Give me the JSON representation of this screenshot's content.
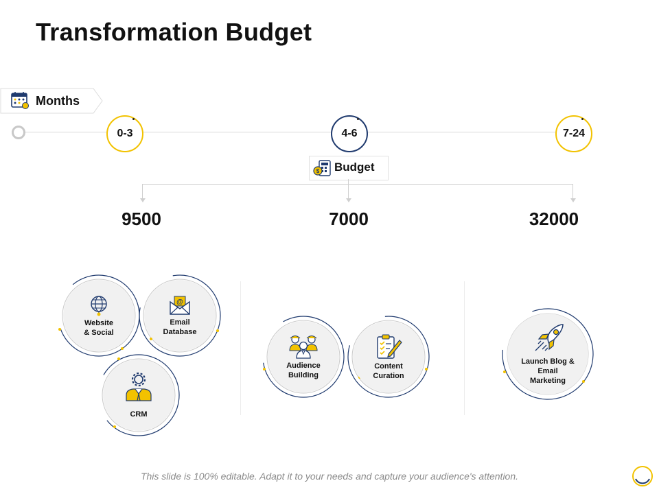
{
  "slide": {
    "title": "Transformation Budget",
    "footer": "This slide is 100% editable. Adapt it to your needs and capture your audience's attention."
  },
  "timeline": {
    "label": "Months",
    "periods": [
      "0-3",
      "4-6",
      "7-24"
    ]
  },
  "budget": {
    "label": "Budget",
    "amounts": [
      "9500",
      "7000",
      "32000"
    ]
  },
  "activities": {
    "website_social": "Website\n& Social",
    "email_database": "Email\nDatabase",
    "crm": "CRM",
    "audience_building": "Audience\nBuilding",
    "content_curation": "Content\nCuration",
    "launch_blog": "Launch Blog &\nEmail\nMarketing"
  },
  "colors": {
    "accent_yellow": "#f2c200",
    "accent_navy": "#1f3a6e",
    "inner_gray": "#f1f1f1"
  },
  "icons": [
    "calendar-icon",
    "calculator-money-icon",
    "globe-icon",
    "email-icon",
    "gear-person-icon",
    "team-icon",
    "checklist-pen-icon",
    "rocket-icon",
    "loading-ring-icon"
  ]
}
